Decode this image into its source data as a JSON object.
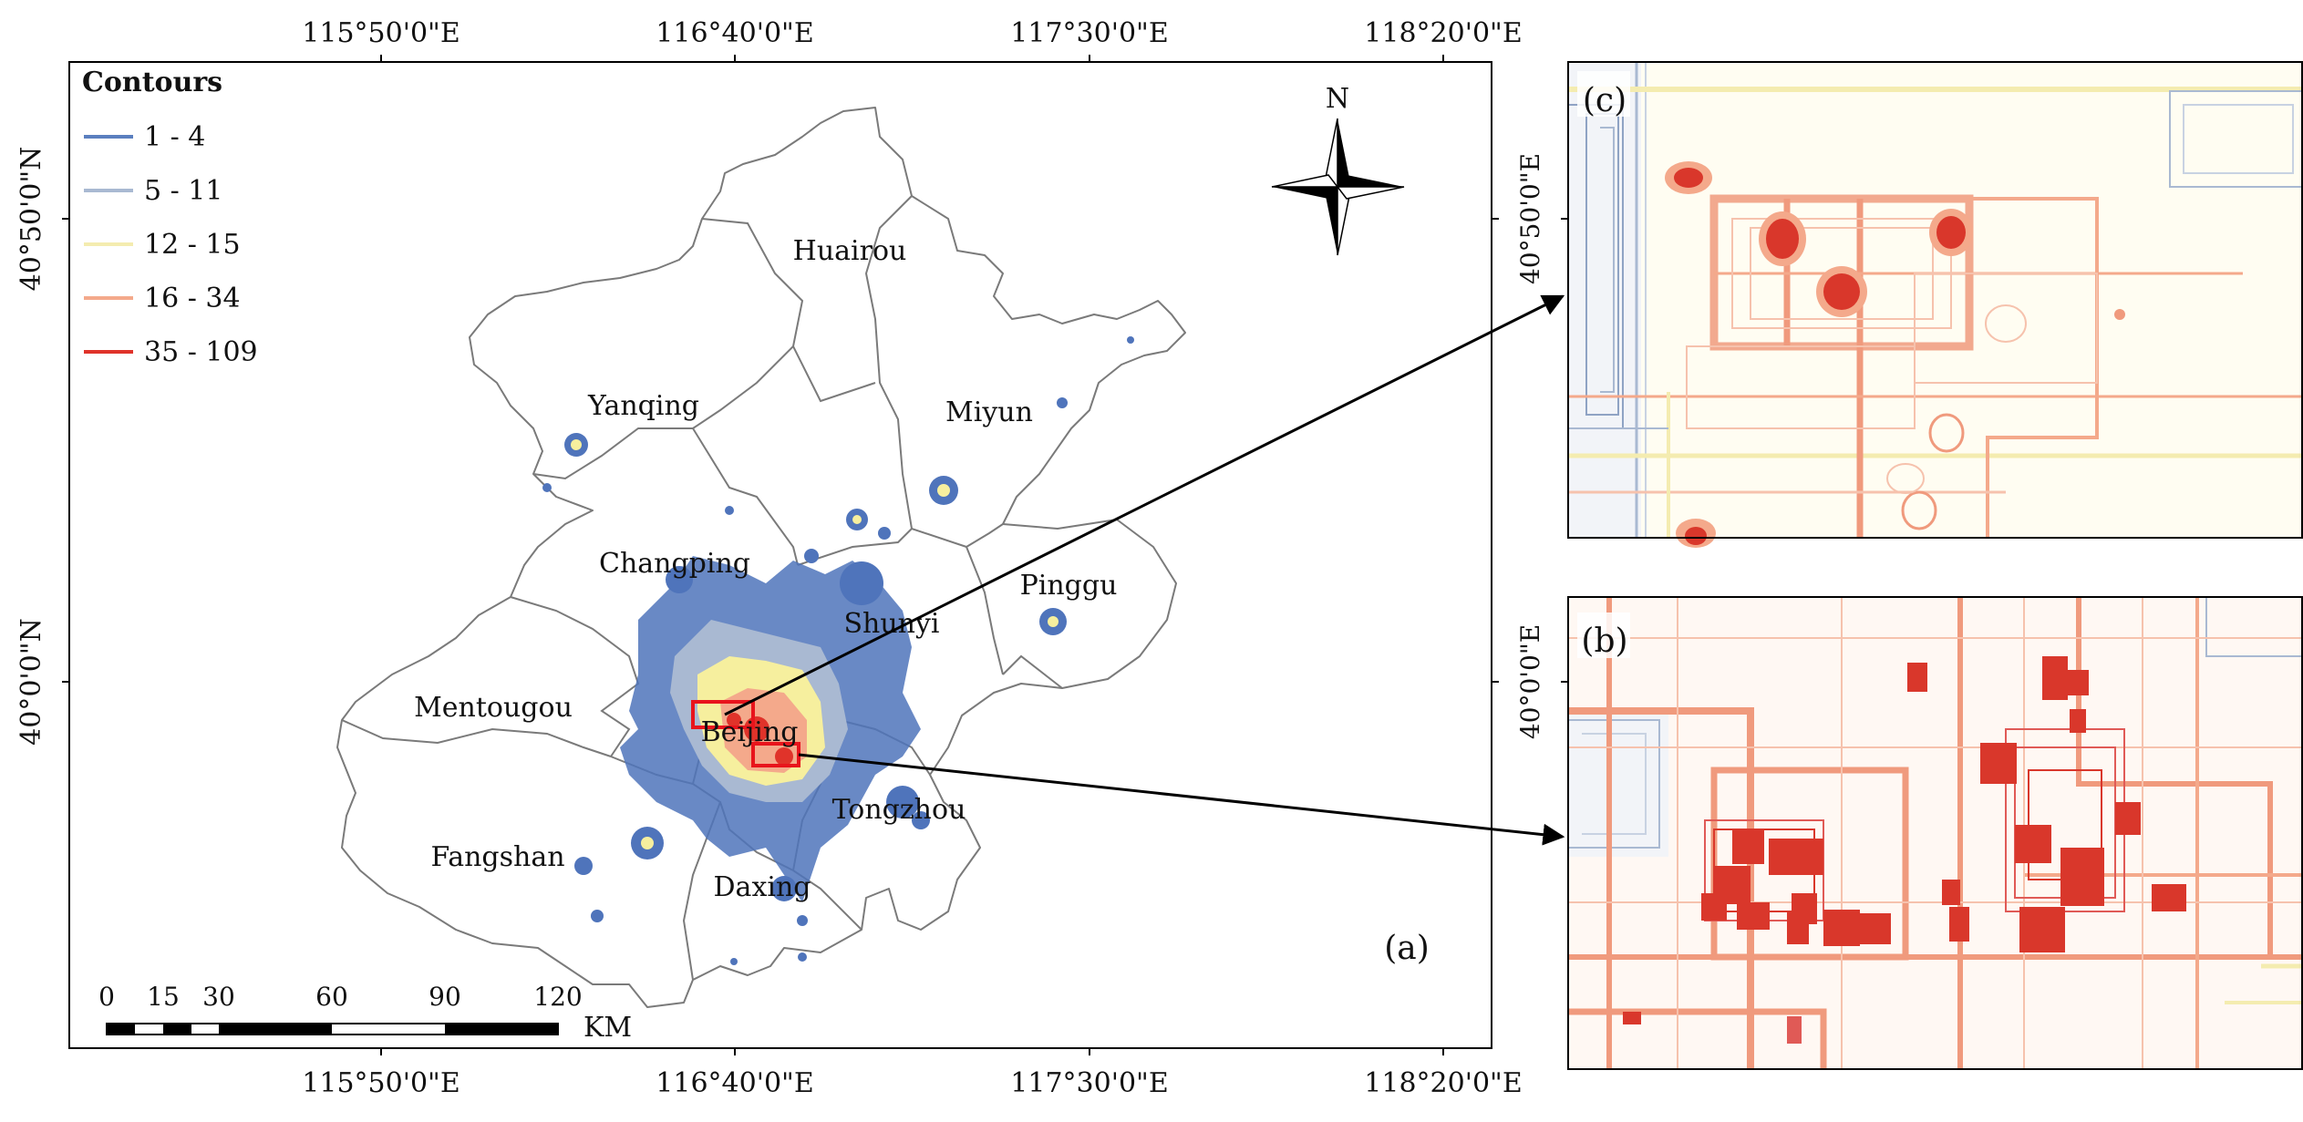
{
  "main_map": {
    "axis_labels": {
      "top": [
        "115°50'0\"E",
        "116°40'0\"E",
        "117°30'0\"E",
        "118°20'0\"E"
      ],
      "bottom": [
        "115°50'0\"E",
        "116°40'0\"E",
        "117°30'0\"E",
        "118°20'0\"E"
      ],
      "left": [
        "40°50'0\"N",
        "40°0'0\"N"
      ]
    },
    "legend": {
      "title": "Contours",
      "items": [
        {
          "label": "1 - 4",
          "color": "#5b7fbf"
        },
        {
          "label": "5 - 11",
          "color": "#a9b9d2"
        },
        {
          "label": "12 - 15",
          "color": "#fbf6b8"
        },
        {
          "label": "16 - 34",
          "color": "#f4a98b"
        },
        {
          "label": "35 - 109",
          "color": "#e0332a"
        }
      ]
    },
    "north_label": "N",
    "districts": [
      "Huairou",
      "Yanqing",
      "Miyun",
      "Changping",
      "Pinggu",
      "Shunyi",
      "Mentougou",
      "Beijing",
      "Tongzhou",
      "Fangshan",
      "Daxing"
    ],
    "scale_bar": {
      "ticks": [
        "0",
        "15",
        "30",
        "60",
        "90",
        "120"
      ],
      "unit": "KM"
    },
    "panel_label": "(a)"
  },
  "inset_c": {
    "panel_label": "(c)",
    "lat_label": "40°50'0\"E"
  },
  "inset_b": {
    "panel_label": "(b)",
    "lat_label": "40°0'0\"E"
  },
  "colors": {
    "frame": "#000000",
    "boundary": "#7a7a7a",
    "highlight": "#e8141c"
  }
}
